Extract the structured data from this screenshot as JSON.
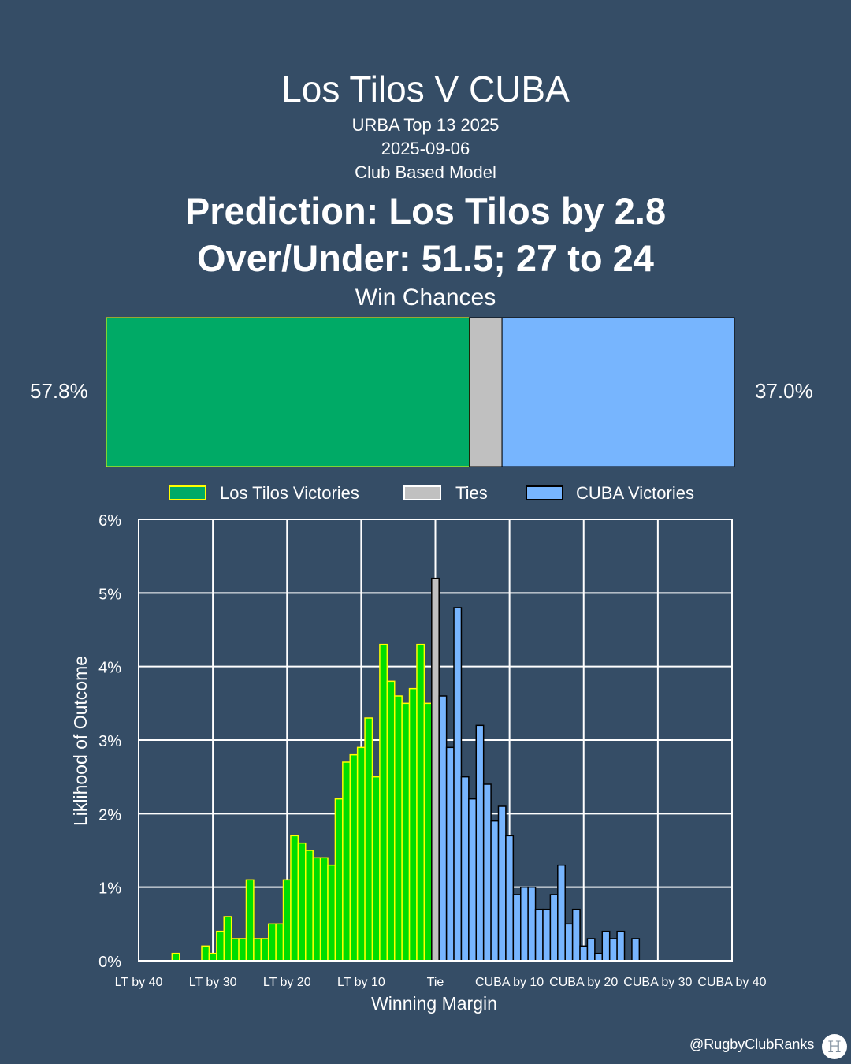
{
  "header": {
    "title": "Los Tilos V CUBA",
    "competition": "URBA Top 13 2025",
    "date": "2025-09-06",
    "model": "Club Based Model",
    "prediction": "Prediction: Los Tilos by 2.8",
    "over_under": "Over/Under: 51.5; 27 to 24"
  },
  "win_chances": {
    "title": "Win Chances",
    "left_label": "57.8%",
    "right_label": "37.0%",
    "los_tilos": 57.8,
    "ties": 5.2,
    "cuba": 37.0
  },
  "legend": {
    "items": [
      {
        "label": "Los Tilos Victories",
        "color": "#00aa66",
        "edge": "#ffff00"
      },
      {
        "label": "Ties",
        "color": "#c0c0c0",
        "edge": "#ffffff"
      },
      {
        "label": "CUBA Victories",
        "color": "#77b5fe",
        "edge": "#000000"
      }
    ]
  },
  "colors": {
    "background": "#354d66",
    "los_tilos_bar": "#00aa66",
    "los_tilos_hist": "#00dd00",
    "los_tilos_edge": "#ffff00",
    "tie": "#c0c0c0",
    "cuba": "#77b5fe",
    "cuba_edge": "#000000",
    "grid": "#ffffff"
  },
  "chart_data": {
    "type": "bar",
    "title": "",
    "xlabel": "Winning Margin",
    "ylabel": "Liklihood of Outcome",
    "x_ticks": [
      {
        "value": -40,
        "label": "LT by 40"
      },
      {
        "value": -30,
        "label": "LT by 30"
      },
      {
        "value": -20,
        "label": "LT by 20"
      },
      {
        "value": -10,
        "label": "LT by 10"
      },
      {
        "value": 0,
        "label": "Tie"
      },
      {
        "value": 10,
        "label": "CUBA by 10"
      },
      {
        "value": 20,
        "label": "CUBA by 20"
      },
      {
        "value": 30,
        "label": "CUBA by 30"
      },
      {
        "value": 40,
        "label": "CUBA by 40"
      }
    ],
    "y_ticks": [
      "0%",
      "1%",
      "2%",
      "3%",
      "4%",
      "5%",
      "6%"
    ],
    "xlim": [
      -40,
      40
    ],
    "ylim": [
      0,
      6
    ],
    "grid": true,
    "series": [
      {
        "name": "Los Tilos Victories",
        "x": [
          -35,
          -34,
          -33,
          -32,
          -31,
          -30,
          -29,
          -28,
          -27,
          -26,
          -25,
          -24,
          -23,
          -22,
          -21,
          -20,
          -19,
          -18,
          -17,
          -16,
          -15,
          -14,
          -13,
          -12,
          -11,
          -10,
          -9,
          -8,
          -7,
          -6,
          -5,
          -4,
          -3,
          -2,
          -1
        ],
        "values": [
          0.1,
          0,
          0,
          0,
          0.2,
          0.1,
          0.4,
          0.6,
          0.3,
          0.3,
          1.1,
          0.3,
          0.3,
          0.5,
          0.5,
          1.1,
          1.7,
          1.6,
          1.5,
          1.4,
          1.4,
          1.3,
          2.2,
          2.7,
          2.8,
          2.9,
          3.3,
          2.5,
          4.3,
          3.8,
          3.6,
          3.5,
          3.7,
          4.3,
          3.5
        ]
      },
      {
        "name": "Ties",
        "x": [
          0
        ],
        "values": [
          5.2
        ]
      },
      {
        "name": "CUBA Victories",
        "x": [
          1,
          2,
          3,
          4,
          5,
          6,
          7,
          8,
          9,
          10,
          11,
          12,
          13,
          14,
          15,
          16,
          17,
          18,
          19,
          20,
          21,
          22,
          23,
          24,
          25,
          26,
          27
        ],
        "values": [
          3.6,
          2.9,
          4.8,
          2.5,
          2.2,
          3.2,
          2.4,
          1.9,
          2.1,
          1.7,
          0.9,
          1.0,
          1.0,
          0.7,
          0.7,
          0.9,
          1.3,
          0.5,
          0.7,
          0.2,
          0.3,
          0.1,
          0.4,
          0.3,
          0.4,
          0,
          0.3
        ]
      }
    ]
  },
  "footer": {
    "credit": "@RugbyClubRanks",
    "logo_icon": "rugby-posts-icon"
  }
}
